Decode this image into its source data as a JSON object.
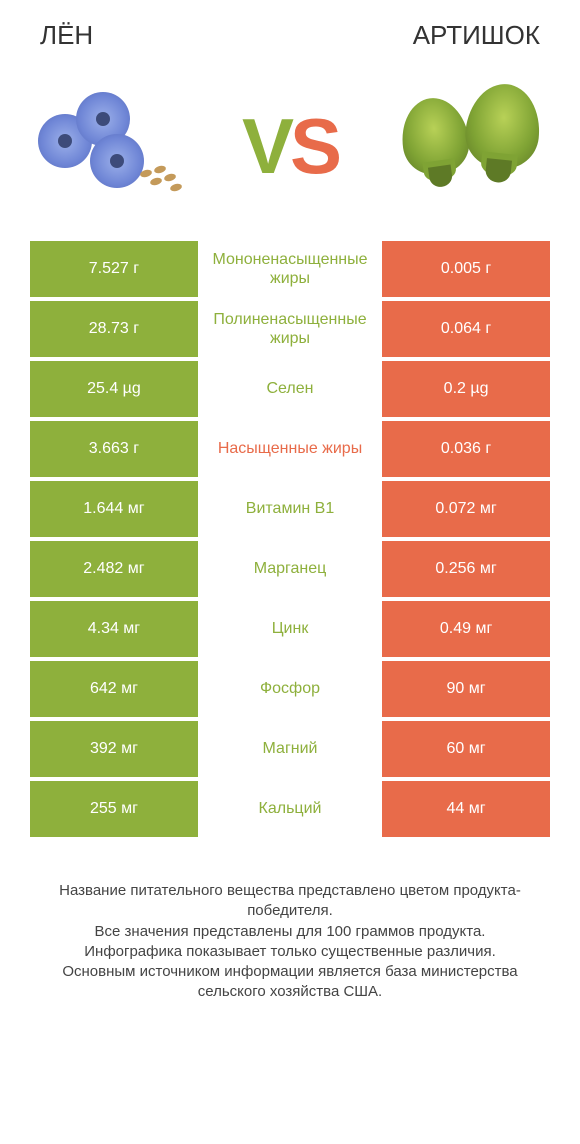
{
  "header": {
    "left_title": "ЛЁН",
    "right_title": "АРТИШОК"
  },
  "vs": {
    "v": "V",
    "s": "S"
  },
  "colors": {
    "left_bg": "#8eb03c",
    "right_bg": "#e86b4a",
    "nutrient_green": "#8eb03c",
    "nutrient_red": "#e86b4a",
    "text_white": "#ffffff"
  },
  "comparison": {
    "rows": [
      {
        "left": "7.527 г",
        "label": "Мононенасыщенные жиры",
        "right": "0.005 г",
        "label_color": "#8eb03c"
      },
      {
        "left": "28.73 г",
        "label": "Полиненасыщенные жиры",
        "right": "0.064 г",
        "label_color": "#8eb03c"
      },
      {
        "left": "25.4 µg",
        "label": "Селен",
        "right": "0.2 µg",
        "label_color": "#8eb03c"
      },
      {
        "left": "3.663 г",
        "label": "Насыщенные жиры",
        "right": "0.036 г",
        "label_color": "#e86b4a"
      },
      {
        "left": "1.644 мг",
        "label": "Витамин B1",
        "right": "0.072 мг",
        "label_color": "#8eb03c"
      },
      {
        "left": "2.482 мг",
        "label": "Марганец",
        "right": "0.256 мг",
        "label_color": "#8eb03c"
      },
      {
        "left": "4.34 мг",
        "label": "Цинк",
        "right": "0.49 мг",
        "label_color": "#8eb03c"
      },
      {
        "left": "642 мг",
        "label": "Фосфор",
        "right": "90 мг",
        "label_color": "#8eb03c"
      },
      {
        "left": "392 мг",
        "label": "Магний",
        "right": "60 мг",
        "label_color": "#8eb03c"
      },
      {
        "left": "255 мг",
        "label": "Кальций",
        "right": "44 мг",
        "label_color": "#8eb03c"
      }
    ]
  },
  "footnote": {
    "line1": "Название питательного вещества представлено цветом продукта-победителя.",
    "line2": "Все значения представлены для 100 граммов продукта.",
    "line3": "Инфографика показывает только существенные различия.",
    "line4": "Основным источником информации является база министерства сельского хозяйства США."
  }
}
